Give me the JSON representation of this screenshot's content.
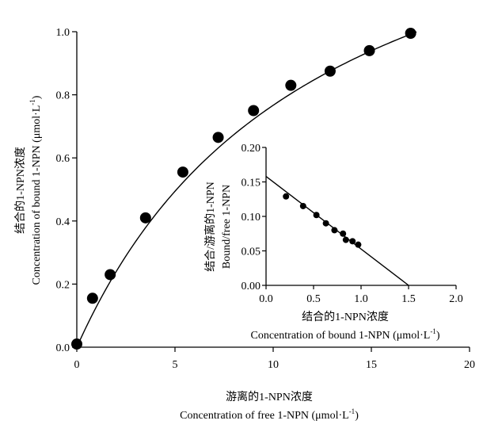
{
  "chart_data": [
    {
      "type": "scatter",
      "panel": "main",
      "x": [
        0,
        0.8,
        1.7,
        3.5,
        5.4,
        7.2,
        9.0,
        10.9,
        12.9,
        14.9,
        17.0
      ],
      "y": [
        0.01,
        0.155,
        0.23,
        0.41,
        0.555,
        0.665,
        0.75,
        0.83,
        0.875,
        0.94,
        0.995
      ],
      "fit": {
        "kind": "saturation",
        "bmax": 1.71,
        "kd": 12.3
      },
      "xlim": [
        0,
        20
      ],
      "ylim": [
        0,
        1.0
      ],
      "xticks": [
        "0",
        "5",
        "10",
        "15",
        "20"
      ],
      "yticks": [
        "0.0",
        "0.2",
        "0.4",
        "0.6",
        "0.8",
        "1.0"
      ],
      "xlabel_zh": "游离的1-NPN浓度",
      "xlabel_en": "Concentration of free 1-NPN (μmol·L",
      "xlabel_sup": "-1",
      "xlabel_close": ")",
      "ylabel_zh": "结合的1-NPN浓度",
      "ylabel_en": "Concentration of bound 1-NPN (μmol·L",
      "ylabel_sup": "-1",
      "ylabel_close": ")"
    },
    {
      "type": "scatter",
      "panel": "inset",
      "x": [
        0.21,
        0.39,
        0.53,
        0.63,
        0.72,
        0.81,
        0.84,
        0.91,
        0.97
      ],
      "y": [
        0.129,
        0.115,
        0.102,
        0.09,
        0.08,
        0.075,
        0.066,
        0.064,
        0.059
      ],
      "fit": {
        "kind": "linear",
        "x0": 0.0,
        "y0": 0.158,
        "x1": 1.5,
        "y1": 0.0
      },
      "xlim": [
        0,
        2.0
      ],
      "ylim": [
        0,
        0.2
      ],
      "xticks": [
        "0.0",
        "0.5",
        "1.0",
        "1.5",
        "2.0"
      ],
      "yticks": [
        "0.00",
        "0.05",
        "0.10",
        "0.15",
        "0.20"
      ],
      "xlabel_zh": "结合的1-NPN浓度",
      "xlabel_en": "Concentration of bound 1-NPN (μmol·L",
      "xlabel_sup": "-1",
      "xlabel_close": ")",
      "ylabel_zh": "结合/游离的1-NPN",
      "ylabel_en": "Bound/free 1-NPN"
    }
  ]
}
